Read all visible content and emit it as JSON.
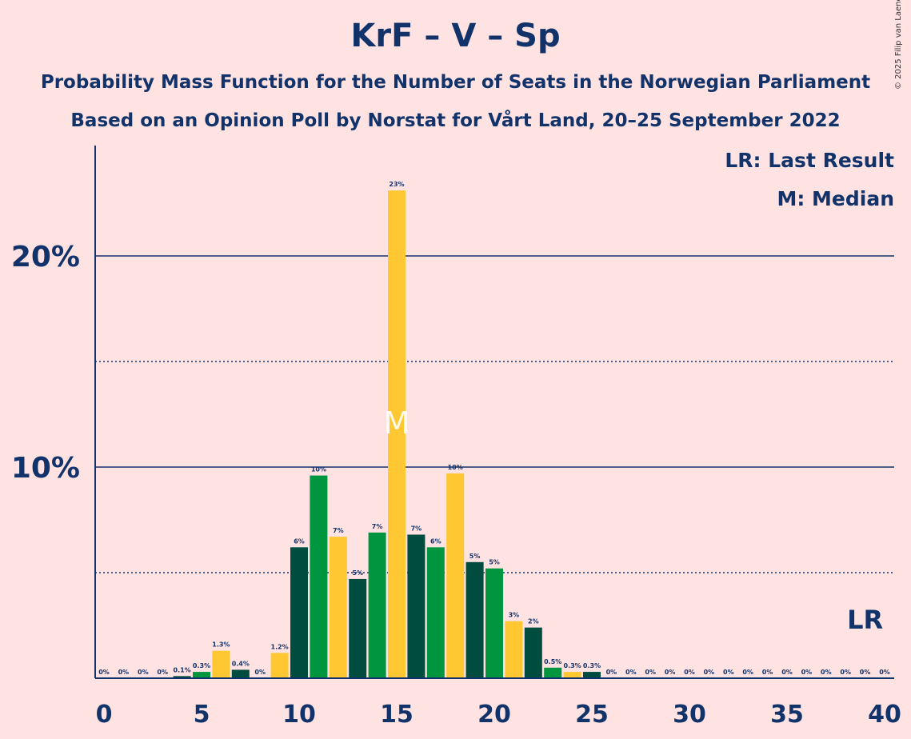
{
  "title": "KrF – V – Sp",
  "subtitle": "Probability Mass Function for the Number of Seats in the Norwegian Parliament",
  "subtitle2": "Based on an Opinion Poll by Norstat for Vårt Land, 20–25 September 2022",
  "copyright": "© 2025 Filip van Laenen",
  "legend": {
    "last_result": "LR: Last Result",
    "median": "M: Median",
    "lr_marker": "LR",
    "median_marker": "M"
  },
  "colors": {
    "background": "#FFE2E2",
    "text": "#12336A",
    "dark": "#004D40",
    "green": "#00963F",
    "yellow": "#FFC832"
  },
  "chart_data": {
    "type": "bar",
    "x": [
      0,
      1,
      2,
      3,
      4,
      5,
      6,
      7,
      8,
      9,
      10,
      11,
      12,
      13,
      14,
      15,
      16,
      17,
      18,
      19,
      20,
      21,
      22,
      23,
      24,
      25,
      26,
      27,
      28,
      29,
      30,
      31,
      32,
      33,
      34,
      35,
      36,
      37,
      38,
      39,
      40
    ],
    "values": [
      0,
      0,
      0,
      0,
      0.1,
      0.3,
      1.3,
      0.4,
      0,
      1.2,
      6.2,
      9.6,
      6.7,
      4.7,
      6.9,
      23.1,
      6.8,
      6.2,
      9.7,
      5.5,
      5.2,
      2.7,
      2.4,
      0.5,
      0.3,
      0.3,
      0,
      0,
      0,
      0,
      0,
      0,
      0,
      0,
      0,
      0,
      0,
      0,
      0,
      0,
      0
    ],
    "data_labels": [
      "0%",
      "0%",
      "0%",
      "0%",
      "0.1%",
      "0.3%",
      "1.3%",
      "0.4%",
      "0%",
      "1.2%",
      "6%",
      "10%",
      "7%",
      "5%",
      "7%",
      "23%",
      "7%",
      "6%",
      "10%",
      "5%",
      "5%",
      "3%",
      "2%",
      "0.5%",
      "0.3%",
      "0.3%",
      "0%",
      "0%",
      "0%",
      "0%",
      "0%",
      "0%",
      "0%",
      "0%",
      "0%",
      "0%",
      "0%",
      "0%",
      "0%",
      "0%",
      "0%"
    ],
    "bar_colors": [
      "dark",
      "green",
      "yellow",
      "dark",
      "dark",
      "green",
      "yellow",
      "dark",
      "green",
      "yellow",
      "dark",
      "green",
      "yellow",
      "dark",
      "green",
      "yellow",
      "dark",
      "green",
      "yellow",
      "dark",
      "green",
      "yellow",
      "dark",
      "green",
      "yellow",
      "dark",
      "green",
      "yellow",
      "dark",
      "green",
      "yellow",
      "dark",
      "green",
      "yellow",
      "dark",
      "green",
      "yellow",
      "dark",
      "green",
      "yellow",
      "dark"
    ],
    "x_ticks": [
      0,
      5,
      10,
      15,
      20,
      25,
      30,
      35,
      40
    ],
    "y_ticks": [
      {
        "value": 10,
        "label": "10%"
      },
      {
        "value": 20,
        "label": "20%"
      }
    ],
    "y_gridlines_dotted": [
      5,
      15
    ],
    "ylim": [
      0,
      25
    ],
    "xlim": [
      0,
      40
    ],
    "median": 15,
    "last_result": 39
  }
}
